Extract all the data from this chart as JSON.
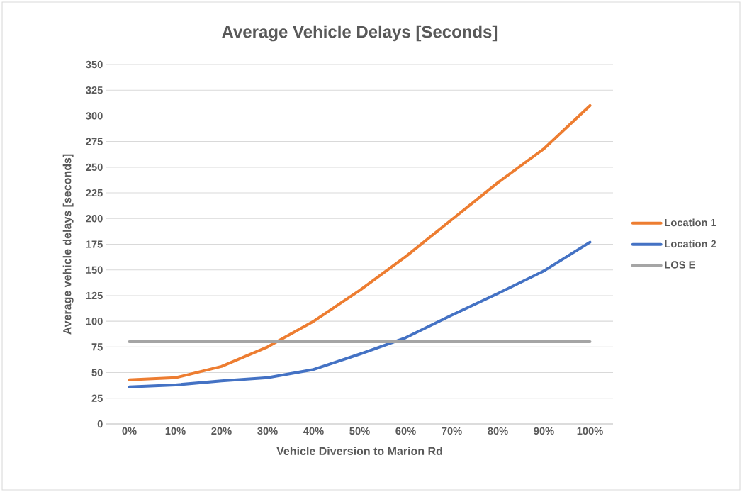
{
  "chart_data": {
    "type": "line",
    "title": "Average Vehicle Delays [Seconds]",
    "xlabel": "Vehicle Diversion to Marion Rd",
    "ylabel": "Average vehicle delays [seconds]",
    "categories": [
      "0%",
      "10%",
      "20%",
      "30%",
      "40%",
      "50%",
      "60%",
      "70%",
      "80%",
      "90%",
      "100%"
    ],
    "series": [
      {
        "name": "Location 1",
        "color": "#ed7d31",
        "values": [
          43,
          45,
          56,
          75,
          100,
          130,
          163,
          199,
          235,
          268,
          310
        ]
      },
      {
        "name": "Location 2",
        "color": "#4472c4",
        "values": [
          36,
          38,
          42,
          45,
          53,
          68,
          84,
          106,
          127,
          149,
          177
        ]
      },
      {
        "name": "LOS E",
        "color": "#a5a5a5",
        "values": [
          80,
          80,
          80,
          80,
          80,
          80,
          80,
          80,
          80,
          80,
          80
        ]
      }
    ],
    "ylim": [
      0,
      350
    ],
    "yticks": [
      0,
      25,
      50,
      75,
      100,
      125,
      150,
      175,
      200,
      225,
      250,
      275,
      300,
      325,
      350
    ],
    "grid": "y",
    "legend": "right",
    "marker": "none",
    "line_style": "solid"
  }
}
